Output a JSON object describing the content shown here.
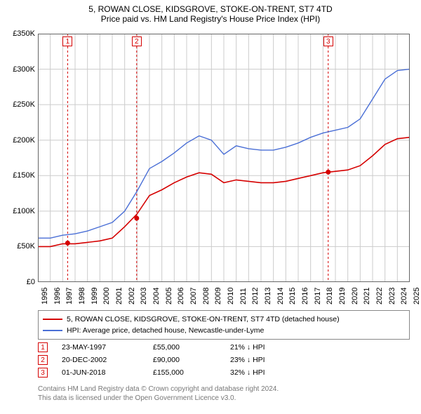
{
  "title_line1": "5, ROWAN CLOSE, KIDSGROVE, STOKE-ON-TRENT, ST7 4TD",
  "title_line2": "Price paid vs. HM Land Registry's House Price Index (HPI)",
  "chart": {
    "type": "line",
    "background_color": "#ffffff",
    "grid_color": "#cccccc",
    "axis_color": "#666666",
    "x_years": [
      1995,
      1996,
      1997,
      1998,
      1999,
      2000,
      2001,
      2002,
      2003,
      2004,
      2005,
      2006,
      2007,
      2008,
      2009,
      2010,
      2011,
      2012,
      2013,
      2014,
      2015,
      2016,
      2017,
      2018,
      2019,
      2020,
      2021,
      2022,
      2023,
      2024,
      2025
    ],
    "xlim": [
      1995,
      2025
    ],
    "ylim": [
      0,
      350000
    ],
    "ytick_step": 50000,
    "ytick_labels": [
      "£0",
      "£50K",
      "£100K",
      "£150K",
      "£200K",
      "£250K",
      "£300K",
      "£350K"
    ],
    "series": [
      {
        "name": "property",
        "color": "#d50000",
        "width": 1.6,
        "y_by_year": [
          50,
          50,
          54,
          54,
          56,
          58,
          62,
          78,
          96,
          122,
          130,
          140,
          148,
          154,
          152,
          140,
          144,
          142,
          140,
          140,
          142,
          146,
          150,
          154,
          156,
          158,
          164,
          178,
          194,
          202,
          204
        ]
      },
      {
        "name": "hpi",
        "color": "#4a6fd6",
        "width": 1.4,
        "y_by_year": [
          62,
          62,
          66,
          68,
          72,
          78,
          84,
          100,
          128,
          160,
          170,
          182,
          196,
          206,
          200,
          180,
          192,
          188,
          186,
          186,
          190,
          196,
          204,
          210,
          214,
          218,
          230,
          258,
          286,
          298,
          300
        ]
      }
    ],
    "sale_points": {
      "color": "#d50000",
      "radius": 3.5,
      "points": [
        {
          "year": 1997.4,
          "value": 55
        },
        {
          "year": 2002.97,
          "value": 90
        },
        {
          "year": 2018.42,
          "value": 155
        }
      ]
    },
    "event_markers": [
      {
        "n": "1",
        "year": 1997.4,
        "color": "#d50000"
      },
      {
        "n": "2",
        "year": 2002.97,
        "color": "#d50000"
      },
      {
        "n": "3",
        "year": 2018.42,
        "color": "#d50000"
      }
    ]
  },
  "legend": [
    {
      "color": "#d50000",
      "label": "5, ROWAN CLOSE, KIDSGROVE, STOKE-ON-TRENT, ST7 4TD (detached house)"
    },
    {
      "color": "#4a6fd6",
      "label": "HPI: Average price, detached house, Newcastle-under-Lyme"
    }
  ],
  "events": [
    {
      "n": "1",
      "color": "#d50000",
      "date": "23-MAY-1997",
      "price": "£55,000",
      "delta": "21% ↓ HPI"
    },
    {
      "n": "2",
      "color": "#d50000",
      "date": "20-DEC-2002",
      "price": "£90,000",
      "delta": "23% ↓ HPI"
    },
    {
      "n": "3",
      "color": "#d50000",
      "date": "01-JUN-2018",
      "price": "£155,000",
      "delta": "32% ↓ HPI"
    }
  ],
  "footer_line1": "Contains HM Land Registry data © Crown copyright and database right 2024.",
  "footer_line2": "This data is licensed under the Open Government Licence v3.0."
}
